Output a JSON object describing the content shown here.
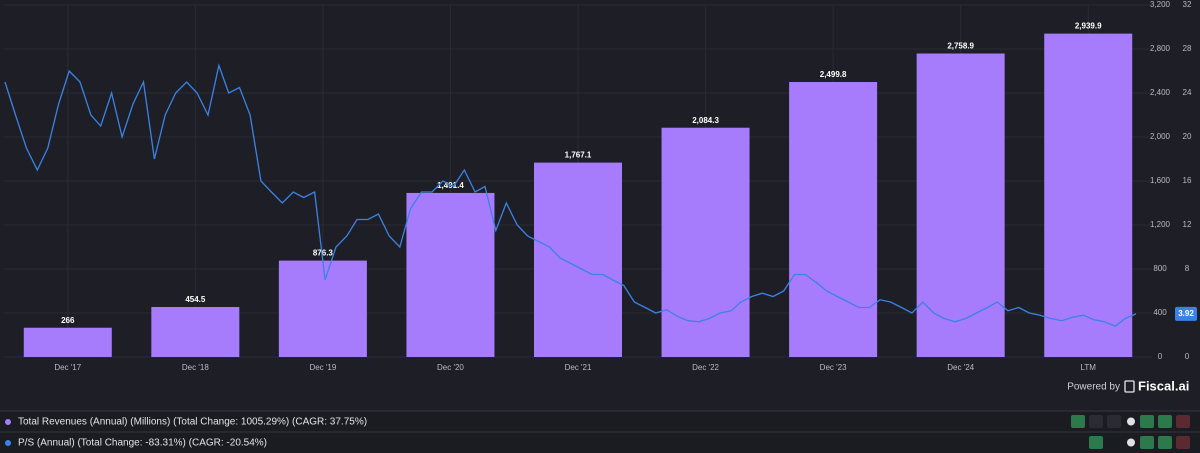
{
  "chart_data": {
    "type": "bar",
    "categories": [
      "Dec '17",
      "Dec '18",
      "Dec '19",
      "Dec '20",
      "Dec '21",
      "Dec '22",
      "Dec '23",
      "Dec '24",
      "LTM"
    ],
    "ylim": [
      0,
      3200
    ],
    "yticks": [
      0,
      400,
      800,
      {
        "value": 1200,
        "label": "1,200"
      },
      {
        "value": 1600,
        "label": "1,600"
      },
      {
        "value": 2000,
        "label": "2,000"
      },
      {
        "value": 2400,
        "label": "2,400"
      },
      {
        "value": 2800,
        "label": "2,800"
      },
      {
        "value": 3200,
        "label": "3,200"
      }
    ],
    "y2lim": [
      0,
      32
    ],
    "y2ticks": [
      0,
      4,
      8,
      12,
      16,
      20,
      24,
      28,
      32
    ],
    "xlim": [
      "Jun '17",
      "Apr '26"
    ],
    "series": [
      {
        "name": "Total Revenues (Annual) (Millions) (Total Change: 1005.29%) (CAGR: 37.75%)",
        "type": "bar",
        "color": "#a77cfc",
        "values": [
          266,
          454.5,
          876.3,
          1491.4,
          1767.1,
          2084.3,
          2499.8,
          2758.9,
          2939.9
        ],
        "value_labels": [
          "266",
          "454.5",
          "876.3",
          "1,491.4",
          "1,767.1",
          "2,084.3",
          "2,499.8",
          "2,758.9",
          "2,939.9"
        ]
      },
      {
        "name": "P/S (Annual) (Total Change: -83.31%) (CAGR: -20.54%)",
        "type": "line",
        "axis": "y2",
        "color": "#3b82e6",
        "x": [
          "Jun '17",
          "Jul '17",
          "Aug '17",
          "Sep '17",
          "Oct '17",
          "Nov '17",
          "Dec '17",
          "Jan '18",
          "Feb '18",
          "Mar '18",
          "Apr '18",
          "May '18",
          "Jun '18",
          "Jul '18",
          "Aug '18",
          "Sep '18",
          "Oct '18",
          "Nov '18",
          "Dec '18",
          "Jan '19",
          "Feb '19",
          "Mar '19",
          "Apr '19",
          "May '19",
          "Jun '19",
          "Jul '19",
          "Aug '19",
          "Sep '19",
          "Oct '19",
          "Nov '19",
          "Dec '19",
          "Jan '20",
          "Feb '20",
          "Mar '20",
          "Apr '20",
          "May '20",
          "Jun '20",
          "Jul '20",
          "Aug '20",
          "Sep '20",
          "Oct '20",
          "Nov '20",
          "Dec '20",
          "Jan '21",
          "Feb '21",
          "Mar '21",
          "Apr '21",
          "May '21",
          "Jun '21",
          "Jul '21",
          "Aug '21",
          "Sep '21",
          "Oct '21",
          "Nov '21",
          "Dec '21",
          "Jan '22",
          "Feb '22",
          "Mar '22",
          "Apr '22",
          "May '22",
          "Jun '22",
          "Jul '22",
          "Aug '22",
          "Sep '22",
          "Oct '22",
          "Nov '22",
          "Dec '22",
          "Jan '23",
          "Feb '23",
          "Mar '23",
          "Apr '23",
          "May '23",
          "Jun '23",
          "Jul '23",
          "Aug '23",
          "Sep '23",
          "Oct '23",
          "Nov '23",
          "Dec '23",
          "Jan '24",
          "Feb '24",
          "Mar '24",
          "Apr '24",
          "May '24",
          "Jun '24",
          "Jul '24",
          "Aug '24",
          "Sep '24",
          "Oct '24",
          "Nov '24",
          "Dec '24",
          "Jan '25",
          "Feb '25",
          "Mar '25",
          "Apr '25",
          "May '25",
          "Jun '25",
          "Jul '25",
          "Aug '25",
          "Sep '25",
          "Oct '25",
          "Nov '25",
          "Dec '25",
          "Jan '26",
          "Feb '26",
          "Mar '26",
          "Apr '26"
        ],
        "values": [
          25,
          22,
          19,
          17,
          19,
          23,
          26,
          25,
          22,
          21,
          24,
          20,
          23,
          25,
          18,
          22,
          24,
          25,
          24,
          22,
          26.5,
          24,
          24.5,
          22,
          16,
          15,
          14,
          15,
          14.5,
          15,
          7,
          10,
          11,
          12.5,
          12.5,
          13,
          11,
          10,
          13.5,
          15,
          15,
          16,
          15.5,
          17,
          15,
          15.5,
          11.5,
          14,
          12,
          11,
          10.5,
          10,
          9,
          8.5,
          8,
          7.5,
          7.5,
          7,
          6.5,
          5,
          4.5,
          4,
          4.3,
          3.7,
          3.3,
          3.2,
          3.5,
          4,
          4.2,
          5,
          5.5,
          5.8,
          5.5,
          6,
          7.5,
          7.5,
          6.8,
          6,
          5.5,
          5,
          4.5,
          4.5,
          5.2,
          5,
          4.5,
          4,
          5,
          4,
          3.5,
          3.2,
          3.5,
          4,
          4.5,
          5,
          4.2,
          4.5,
          4,
          3.8,
          3.5,
          3.3,
          3.6,
          3.8,
          3.4,
          3.2,
          2.8,
          3.5,
          3.92
        ]
      }
    ]
  },
  "footer": {
    "powered_by": "Powered by",
    "brand": "Fiscal.ai"
  }
}
